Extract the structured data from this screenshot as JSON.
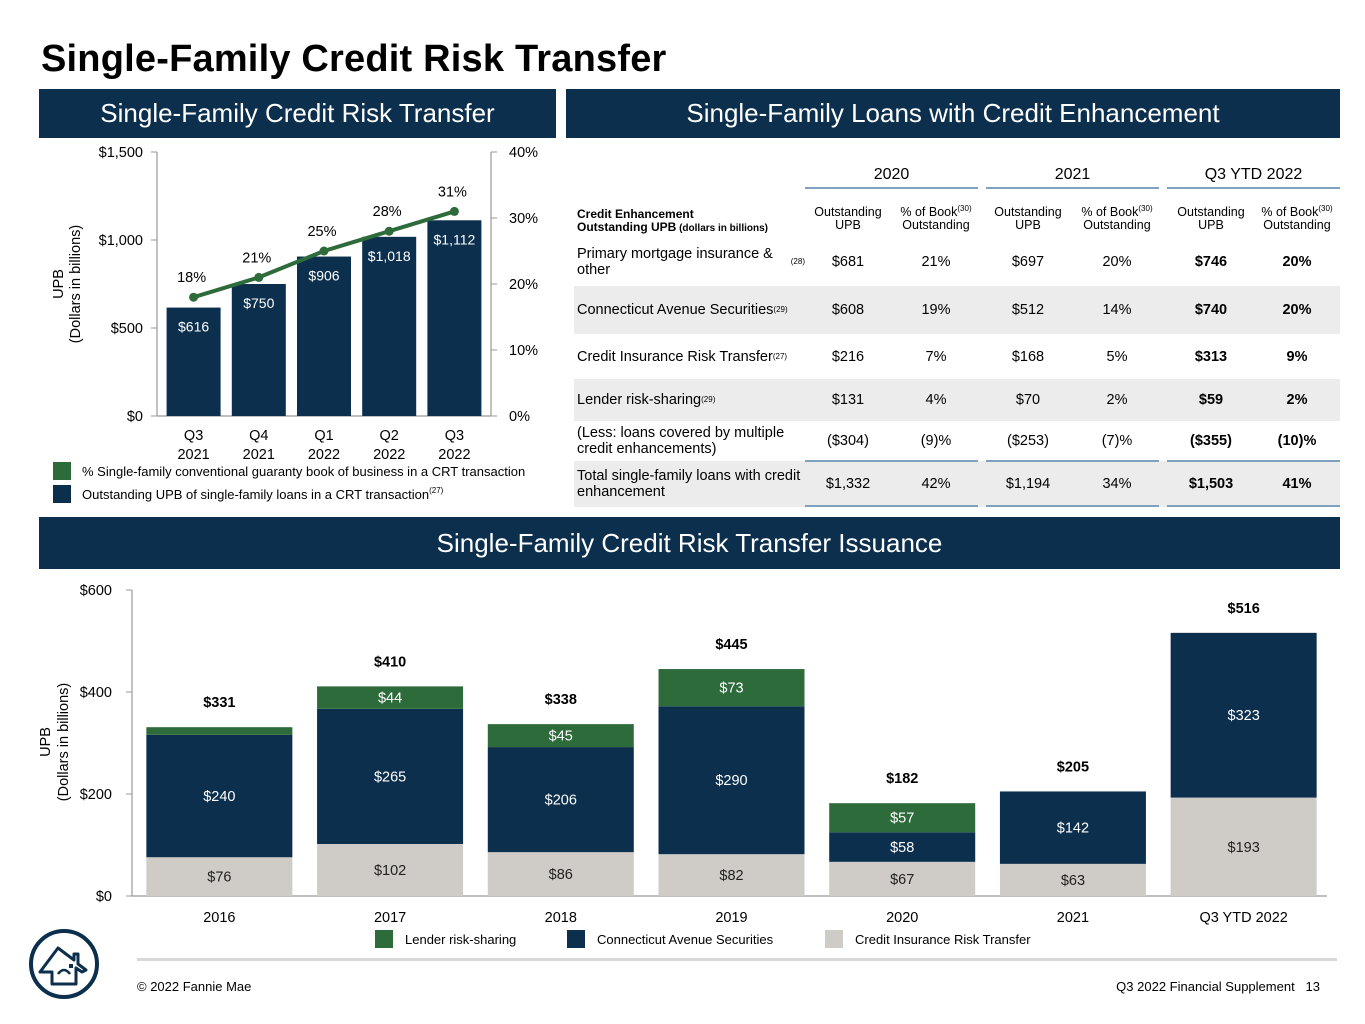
{
  "page": {
    "title": "Single-Family Credit Risk Transfer",
    "banner_crt": "Single-Family Credit Risk Transfer",
    "banner_enhancement": "Single-Family Loans with Credit Enhancement",
    "banner_issuance": "Single-Family Credit Risk Transfer Issuance"
  },
  "colors": {
    "navy": "#0c2f4e",
    "green": "#2e6b3a",
    "gray": "#cfcbc6",
    "line_blue": "#7fa1bf"
  },
  "chart_data": [
    {
      "type": "bar",
      "title": "Single-Family Credit Risk Transfer",
      "categories": [
        "Q3\n2021",
        "Q4\n2021",
        "Q1\n2022",
        "Q2\n2022",
        "Q3\n2022"
      ],
      "category_lines": [
        [
          "Q3",
          "2021"
        ],
        [
          "Q4",
          "2021"
        ],
        [
          "Q1",
          "2022"
        ],
        [
          "Q2",
          "2022"
        ],
        [
          "Q3",
          "2022"
        ]
      ],
      "values": [
        616,
        750,
        906,
        1018,
        1112
      ],
      "value_labels": [
        "$616",
        "$750",
        "$906",
        "$1,018",
        "$1,112"
      ],
      "line_series": {
        "values": [
          18,
          21,
          25,
          28,
          31
        ],
        "labels": [
          "18%",
          "21%",
          "25%",
          "28%",
          "31%"
        ]
      },
      "ylabel": "UPB",
      "ylabel2": "(Dollars in billions)",
      "ylim": [
        0,
        1500
      ],
      "yticks": [
        0,
        500,
        1000,
        1500
      ],
      "ytick_labels": [
        "$0",
        "$500",
        "$1,000",
        "$1,500"
      ],
      "y2lim": [
        0,
        40
      ],
      "y2ticks": [
        0,
        10,
        20,
        30,
        40
      ],
      "y2tick_labels": [
        "0%",
        "10%",
        "20%",
        "30%",
        "40%"
      ],
      "legend": [
        {
          "text": "% Single-family conventional guaranty book of business in a CRT transaction",
          "color": "#2e6b3a"
        },
        {
          "text": "Outstanding UPB of single-family loans in a CRT transaction",
          "sup": "(27)",
          "color": "#0c2f4e"
        }
      ]
    },
    {
      "type": "bar",
      "stacked": true,
      "title": "Single-Family Credit Risk Transfer Issuance",
      "categories": [
        "2016",
        "2017",
        "2018",
        "2019",
        "2020",
        "2021",
        "Q3 YTD 2022"
      ],
      "series": [
        {
          "name": "Credit Insurance Risk Transfer",
          "values": [
            76,
            102,
            86,
            82,
            67,
            63,
            193
          ],
          "labels": [
            "$76",
            "$102",
            "$86",
            "$82",
            "$67",
            "$63",
            "$193"
          ],
          "color": "#cfcbc6"
        },
        {
          "name": "Connecticut Avenue Securities",
          "values": [
            240,
            265,
            206,
            290,
            58,
            142,
            323
          ],
          "labels": [
            "$240",
            "$265",
            "$206",
            "$290",
            "$58",
            "$142",
            "$323"
          ],
          "color": "#0c2f4e"
        },
        {
          "name": "Lender risk-sharing",
          "values": [
            15,
            44,
            45,
            73,
            57,
            0,
            0
          ],
          "labels": [
            "",
            "$44",
            "$45",
            "$73",
            "$57",
            "",
            ""
          ],
          "color": "#2e6b3a"
        }
      ],
      "totals": [
        "$331",
        "$410",
        "$338",
        "$445",
        "$182",
        "$205",
        "$516"
      ],
      "ylabel": "UPB",
      "ylabel2": "(Dollars in billions)",
      "ylim": [
        0,
        600
      ],
      "yticks": [
        0,
        200,
        400,
        600
      ],
      "ytick_labels": [
        "$0",
        "$200",
        "$400",
        "$600"
      ],
      "legend_order": [
        "Lender risk-sharing",
        "Connecticut Avenue Securities",
        "Credit Insurance Risk Transfer"
      ]
    }
  ],
  "table": {
    "groups": [
      "2020",
      "2021",
      "Q3 YTD 2022"
    ],
    "header_label_line1": "Credit Enhancement",
    "header_label_line2": "Outstanding UPB",
    "header_label_unit": "(dollars in billions)",
    "col_header_upb_1": "Outstanding",
    "col_header_upb_2": "UPB",
    "col_header_pct_1": "% of Book",
    "col_header_pct_sup": "(30)",
    "col_header_pct_2": "Outstanding",
    "rows": [
      {
        "label": "Primary mortgage insurance & other",
        "sup": "(28)",
        "values": [
          "$681",
          "21%",
          "$697",
          "20%",
          "$746",
          "20%"
        ]
      },
      {
        "label": "Connecticut Avenue Securities",
        "sup": "(29)",
        "values": [
          "$608",
          "19%",
          "$512",
          "14%",
          "$740",
          "20%"
        ]
      },
      {
        "label": "Credit Insurance Risk Transfer",
        "sup": "(27)",
        "values": [
          "$216",
          "7%",
          "$168",
          "5%",
          "$313",
          "9%"
        ]
      },
      {
        "label": "Lender risk-sharing",
        "sup": "(29)",
        "values": [
          "$131",
          "4%",
          "$70",
          "2%",
          "$59",
          "2%"
        ]
      },
      {
        "label": "(Less: loans covered by multiple credit enhancements)",
        "sup": "",
        "values": [
          "($304)",
          "(9)%",
          "($253)",
          "(7)%",
          "($355)",
          "(10)%"
        ]
      },
      {
        "label": "Total single-family loans with credit enhancement",
        "sup": "",
        "values": [
          "$1,332",
          "42%",
          "$1,194",
          "34%",
          "$1,503",
          "41%"
        ]
      }
    ]
  },
  "footer": {
    "copyright": "© 2022 Fannie Mae",
    "doc": "Q3 2022 Financial Supplement",
    "page_number": "13"
  }
}
